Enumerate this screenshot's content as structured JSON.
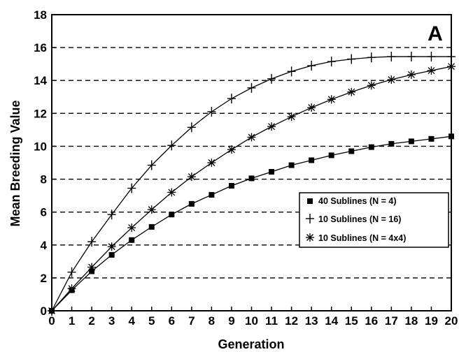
{
  "chart_data": {
    "type": "line",
    "panel_label": "A",
    "xlabel": "Generation",
    "ylabel": "Mean Breeding Value",
    "xlim": [
      0,
      20
    ],
    "ylim": [
      0,
      18
    ],
    "x_ticks": [
      0,
      1,
      2,
      3,
      4,
      5,
      6,
      7,
      8,
      9,
      10,
      11,
      12,
      13,
      14,
      15,
      16,
      17,
      18,
      19,
      20
    ],
    "y_ticks": [
      0,
      2,
      4,
      6,
      8,
      10,
      12,
      14,
      16,
      18
    ],
    "grid": "horizontal dashed",
    "legend_position": "right-center",
    "x": [
      0,
      1,
      2,
      3,
      4,
      5,
      6,
      7,
      8,
      9,
      10,
      11,
      12,
      13,
      14,
      15,
      16,
      17,
      18,
      19,
      20
    ],
    "series": [
      {
        "name": "40 Sublines (N = 4)",
        "marker": "square",
        "values": [
          0,
          1.25,
          2.4,
          3.4,
          4.3,
          5.1,
          5.85,
          6.5,
          7.05,
          7.6,
          8.05,
          8.45,
          8.85,
          9.15,
          9.45,
          9.7,
          9.95,
          10.15,
          10.3,
          10.45,
          10.6
        ]
      },
      {
        "name": "10 Sublines (N = 16)",
        "marker": "plus",
        "values": [
          0,
          2.35,
          4.2,
          5.85,
          7.45,
          8.85,
          10.05,
          11.15,
          12.1,
          12.9,
          13.55,
          14.1,
          14.55,
          14.9,
          15.15,
          15.3,
          15.4,
          15.45,
          15.45,
          15.45,
          15.45
        ]
      },
      {
        "name": "10 Sublines (N = 4x4)",
        "marker": "asterisk",
        "values": [
          0,
          1.35,
          2.65,
          3.9,
          5.05,
          6.15,
          7.2,
          8.15,
          9.0,
          9.8,
          10.55,
          11.2,
          11.8,
          12.35,
          12.85,
          13.3,
          13.7,
          14.05,
          14.35,
          14.6,
          14.85
        ]
      }
    ]
  }
}
